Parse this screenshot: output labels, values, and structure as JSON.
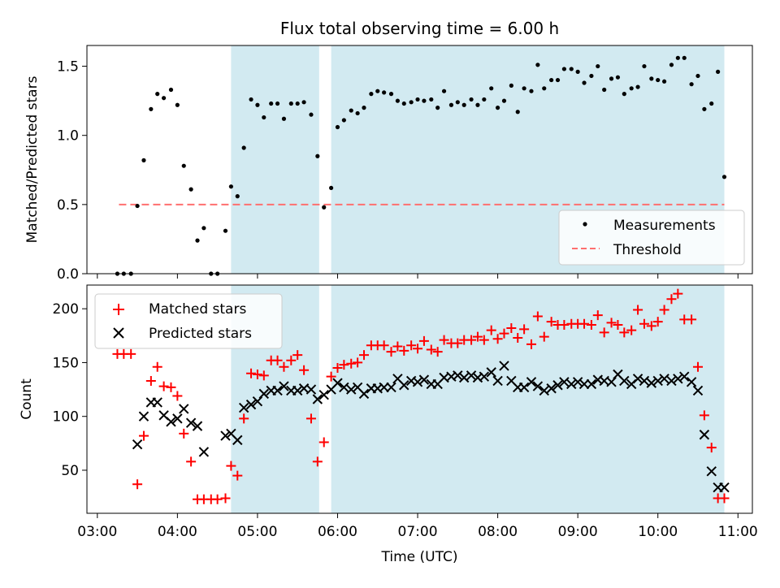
{
  "title": "Flux total observing time = 6.00 h",
  "chart_data": [
    {
      "type": "scatter",
      "name": "top-panel",
      "ylabel": "Matched/Predicted stars",
      "ylim": [
        0,
        1.65
      ],
      "yticks": [
        0.0,
        0.5,
        1.0,
        1.5
      ],
      "ytick_labels": [
        "0.0",
        "0.5",
        "1.0",
        "1.5"
      ],
      "xlim": [
        2.87,
        11.18
      ],
      "xticks": [
        3,
        4,
        5,
        6,
        7,
        8,
        9,
        10,
        11
      ],
      "shaded_intervals": [
        [
          4.67,
          5.77
        ],
        [
          5.92,
          10.83
        ]
      ],
      "shade_color": "#add8e6",
      "threshold": {
        "value": 0.5,
        "x_start": 3.27,
        "x_end": 10.83,
        "label": "Threshold",
        "color": "#ff6f6f"
      },
      "measurements": {
        "label": "Measurements",
        "color": "#000000",
        "x": [
          3.25,
          3.33,
          3.42,
          3.5,
          3.58,
          3.67,
          3.75,
          3.83,
          3.92,
          4.0,
          4.08,
          4.17,
          4.25,
          4.33,
          4.42,
          4.5,
          4.6,
          4.67,
          4.75,
          4.83,
          4.92,
          5.0,
          5.08,
          5.17,
          5.25,
          5.33,
          5.42,
          5.5,
          5.58,
          5.67,
          5.75,
          5.83,
          5.92,
          6.0,
          6.08,
          6.17,
          6.25,
          6.33,
          6.42,
          6.5,
          6.58,
          6.67,
          6.75,
          6.83,
          6.92,
          7.0,
          7.08,
          7.17,
          7.25,
          7.33,
          7.42,
          7.5,
          7.58,
          7.67,
          7.75,
          7.83,
          7.92,
          8.0,
          8.08,
          8.17,
          8.25,
          8.33,
          8.42,
          8.5,
          8.58,
          8.67,
          8.75,
          8.83,
          8.92,
          9.0,
          9.08,
          9.17,
          9.25,
          9.33,
          9.42,
          9.5,
          9.58,
          9.67,
          9.75,
          9.83,
          9.92,
          10.0,
          10.08,
          10.17,
          10.25,
          10.33,
          10.42,
          10.5,
          10.58,
          10.67,
          10.75,
          10.83
        ],
        "y": [
          0.0,
          0.0,
          0.0,
          0.49,
          0.82,
          1.19,
          1.3,
          1.27,
          1.33,
          1.22,
          0.78,
          0.61,
          0.24,
          0.33,
          0.0,
          0.0,
          0.31,
          0.63,
          0.56,
          0.91,
          1.26,
          1.22,
          1.13,
          1.23,
          1.23,
          1.12,
          1.23,
          1.23,
          1.24,
          1.15,
          0.85,
          0.48,
          0.62,
          1.06,
          1.11,
          1.18,
          1.16,
          1.2,
          1.3,
          1.32,
          1.31,
          1.3,
          1.25,
          1.23,
          1.24,
          1.26,
          1.25,
          1.26,
          1.2,
          1.32,
          1.22,
          1.24,
          1.22,
          1.26,
          1.22,
          1.26,
          1.34,
          1.2,
          1.25,
          1.36,
          1.17,
          1.34,
          1.32,
          1.51,
          1.34,
          1.4,
          1.4,
          1.48,
          1.48,
          1.46,
          1.38,
          1.43,
          1.5,
          1.33,
          1.41,
          1.42,
          1.3,
          1.34,
          1.35,
          1.5,
          1.41,
          1.4,
          1.39,
          1.51,
          1.56,
          1.56,
          1.37,
          1.43,
          1.19,
          1.23,
          1.46,
          0.7
        ]
      },
      "legend": {
        "placement": "lower right"
      }
    },
    {
      "type": "scatter",
      "name": "bottom-panel",
      "xlabel": "Time (UTC)",
      "ylabel": "Count",
      "ylim": [
        10,
        222
      ],
      "yticks": [
        50,
        100,
        150,
        200
      ],
      "ytick_labels": [
        "50",
        "100",
        "150",
        "200"
      ],
      "xlim": [
        2.87,
        11.18
      ],
      "xticks": [
        3,
        4,
        5,
        6,
        7,
        8,
        9,
        10,
        11
      ],
      "xtick_labels": [
        "03:00",
        "04:00",
        "05:00",
        "06:00",
        "07:00",
        "08:00",
        "09:00",
        "10:00",
        "11:00"
      ],
      "shaded_intervals": [
        [
          4.67,
          5.77
        ],
        [
          5.92,
          10.83
        ]
      ],
      "shade_color": "#add8e6",
      "series": [
        {
          "name": "Matched stars",
          "marker": "+",
          "color": "#ff0000",
          "x": [
            3.25,
            3.33,
            3.42,
            3.5,
            3.58,
            3.67,
            3.75,
            3.83,
            3.92,
            4.0,
            4.08,
            4.17,
            4.25,
            4.33,
            4.42,
            4.5,
            4.6,
            4.67,
            4.75,
            4.83,
            4.92,
            5.0,
            5.08,
            5.17,
            5.25,
            5.33,
            5.42,
            5.5,
            5.58,
            5.67,
            5.75,
            5.83,
            5.92,
            6.0,
            6.08,
            6.17,
            6.25,
            6.33,
            6.42,
            6.5,
            6.58,
            6.67,
            6.75,
            6.83,
            6.92,
            7.0,
            7.08,
            7.17,
            7.25,
            7.33,
            7.42,
            7.5,
            7.58,
            7.67,
            7.75,
            7.83,
            7.92,
            8.0,
            8.08,
            8.17,
            8.25,
            8.33,
            8.42,
            8.5,
            8.58,
            8.67,
            8.75,
            8.83,
            8.92,
            9.0,
            9.08,
            9.17,
            9.25,
            9.33,
            9.42,
            9.5,
            9.58,
            9.67,
            9.75,
            9.83,
            9.92,
            10.0,
            10.08,
            10.17,
            10.25,
            10.33,
            10.42,
            10.5,
            10.58,
            10.67,
            10.75,
            10.83
          ],
          "y": [
            158,
            158,
            158,
            37,
            82,
            133,
            146,
            128,
            127,
            119,
            84,
            58,
            23,
            23,
            23,
            23,
            24,
            54,
            45,
            98,
            140,
            139,
            138,
            152,
            152,
            146,
            152,
            157,
            143,
            98,
            58,
            76,
            137,
            145,
            148,
            149,
            150,
            157,
            166,
            166,
            166,
            160,
            165,
            161,
            166,
            163,
            170,
            162,
            160,
            171,
            168,
            168,
            171,
            171,
            174,
            171,
            180,
            172,
            177,
            182,
            173,
            181,
            167,
            193,
            174,
            188,
            185,
            185,
            186,
            186,
            186,
            185,
            194,
            178,
            187,
            185,
            178,
            180,
            199,
            186,
            184,
            188,
            199,
            209,
            214,
            190,
            190,
            146,
            101,
            71,
            24,
            24
          ]
        },
        {
          "name": "Predicted stars",
          "marker": "x",
          "color": "#000000",
          "x": [
            3.5,
            3.58,
            3.67,
            3.75,
            3.83,
            3.92,
            4.0,
            4.08,
            4.17,
            4.25,
            4.33,
            4.6,
            4.67,
            4.75,
            4.83,
            4.92,
            5.0,
            5.08,
            5.17,
            5.25,
            5.33,
            5.42,
            5.5,
            5.58,
            5.67,
            5.75,
            5.83,
            5.92,
            6.0,
            6.08,
            6.17,
            6.25,
            6.33,
            6.42,
            6.5,
            6.58,
            6.67,
            6.75,
            6.83,
            6.92,
            7.0,
            7.08,
            7.17,
            7.25,
            7.33,
            7.42,
            7.5,
            7.58,
            7.67,
            7.75,
            7.83,
            7.92,
            8.0,
            8.08,
            8.17,
            8.25,
            8.33,
            8.42,
            8.5,
            8.58,
            8.67,
            8.75,
            8.83,
            8.92,
            9.0,
            9.08,
            9.17,
            9.25,
            9.33,
            9.42,
            9.5,
            9.58,
            9.67,
            9.75,
            9.83,
            9.92,
            10.0,
            10.08,
            10.17,
            10.25,
            10.33,
            10.42,
            10.5,
            10.58,
            10.67,
            10.75,
            10.83
          ],
          "y": [
            74,
            100,
            113,
            113,
            101,
            95,
            98,
            107,
            94,
            91,
            67,
            82,
            84,
            78,
            108,
            111,
            114,
            121,
            124,
            124,
            128,
            124,
            124,
            126,
            125,
            116,
            120,
            125,
            131,
            127,
            125,
            127,
            121,
            126,
            126,
            127,
            127,
            135,
            129,
            133,
            132,
            134,
            130,
            130,
            136,
            137,
            138,
            136,
            138,
            136,
            137,
            141,
            133,
            147,
            133,
            127,
            127,
            132,
            128,
            124,
            126,
            129,
            132,
            130,
            132,
            130,
            130,
            134,
            133,
            132,
            139,
            133,
            130,
            135,
            133,
            131,
            133,
            135,
            133,
            135,
            137,
            132,
            124,
            83,
            49,
            34,
            34
          ]
        }
      ],
      "legend": {
        "placement": "upper left"
      }
    }
  ]
}
